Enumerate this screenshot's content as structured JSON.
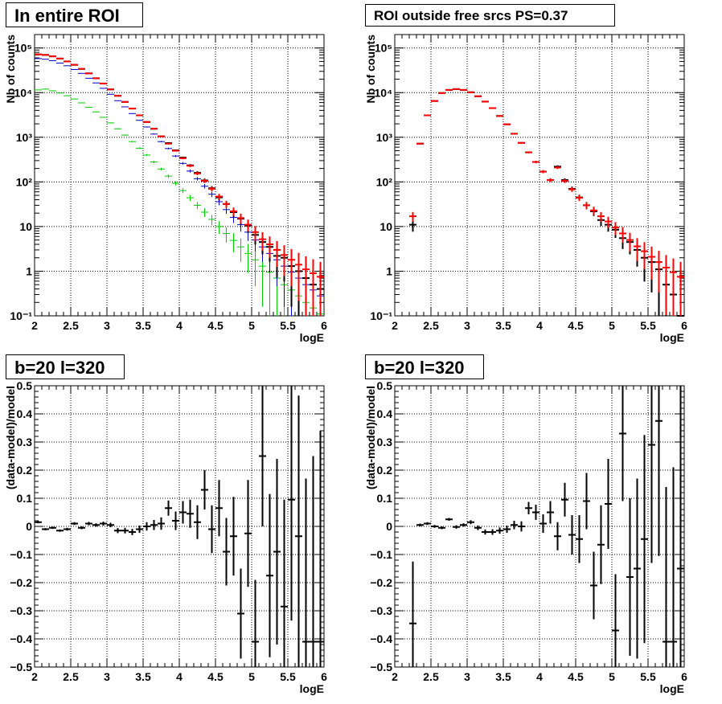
{
  "chart_data": [
    {
      "type": "scatter",
      "title": "In entire ROI",
      "xlabel": "logE",
      "ylabel": "Nb of counts",
      "xlim": [
        2,
        6
      ],
      "ylim": [
        0.1,
        200000
      ],
      "yscale": "log",
      "x_ticks": [
        "2",
        "2.5",
        "3",
        "3.5",
        "4",
        "4.5",
        "5",
        "5.5",
        "6"
      ],
      "y_ticks": [
        "10⁻¹",
        "1",
        "10",
        "10²",
        "10³",
        "10⁴",
        "10⁵"
      ],
      "grid": true,
      "bin_width": 0.1,
      "x": [
        2.05,
        2.15,
        2.25,
        2.35,
        2.45,
        2.55,
        2.65,
        2.75,
        2.85,
        2.95,
        3.05,
        3.15,
        3.25,
        3.35,
        3.45,
        3.55,
        3.65,
        3.75,
        3.85,
        3.95,
        4.05,
        4.15,
        4.25,
        4.35,
        4.45,
        4.55,
        4.65,
        4.75,
        4.85,
        4.95,
        5.05,
        5.15,
        5.25,
        5.35,
        5.45,
        5.55,
        5.65,
        5.75,
        5.85,
        5.95
      ],
      "series": [
        {
          "color": "#ff0000",
          "values": [
            72000,
            70000,
            65000,
            58000,
            50000,
            42000,
            34000,
            27000,
            21000,
            16000,
            11800,
            8500,
            6200,
            4400,
            3100,
            2200,
            1550,
            1050,
            720,
            500,
            340,
            230,
            155,
            105,
            70,
            47,
            32,
            22,
            15.5,
            11,
            7.5,
            5.2,
            4.0,
            3.0,
            2.3,
            1.8,
            1.4,
            1.1,
            0.9,
            0.75
          ]
        },
        {
          "color": "#000000",
          "values": [
            72000,
            70000,
            65000,
            58000,
            50000,
            42000,
            34000,
            27000,
            21000,
            16000,
            11800,
            8500,
            6200,
            4400,
            3100,
            2200,
            1550,
            1050,
            740,
            510,
            350,
            235,
            160,
            108,
            72,
            45,
            32,
            21,
            15,
            10.5,
            6.5,
            4.5,
            3.5,
            2.2,
            2.0,
            1.3,
            1.0,
            0.7,
            0.5,
            0.4
          ]
        },
        {
          "color": "#0000cc",
          "values": [
            58000,
            56000,
            52000,
            46000,
            40000,
            33000,
            27000,
            21000,
            16500,
            12500,
            9200,
            6600,
            4800,
            3400,
            2400,
            1700,
            1180,
            800,
            560,
            380,
            260,
            175,
            118,
            80,
            53,
            36,
            24,
            16,
            11,
            7.5,
            5,
            3.5,
            2.5,
            1.8,
            1.3,
            0.95,
            0.7,
            0.5,
            0.38,
            0.28
          ]
        },
        {
          "color": "#00cc00",
          "values": [
            11500,
            12000,
            11000,
            9800,
            8500,
            7200,
            5900,
            4700,
            3700,
            2800,
            2100,
            1550,
            1120,
            800,
            570,
            400,
            280,
            195,
            135,
            93,
            64,
            44,
            30,
            21,
            14.5,
            10,
            7,
            4.9,
            3.5,
            2.5,
            1.8,
            1.3,
            0.95,
            0.7,
            0.5,
            0.38,
            0.28,
            0.2,
            0.15,
            0.11
          ]
        }
      ]
    },
    {
      "type": "scatter",
      "title": "ROI outside free srcs PS=0.37",
      "xlabel": "logE",
      "ylabel": "Nb of counts",
      "xlim": [
        2,
        6
      ],
      "ylim": [
        0.1,
        200000
      ],
      "yscale": "log",
      "x_ticks": [
        "2",
        "2.5",
        "3",
        "3.5",
        "4",
        "4.5",
        "5",
        "5.5",
        "6"
      ],
      "y_ticks": [
        "10⁻¹",
        "1",
        "10",
        "10²",
        "10³",
        "10⁴",
        "10⁵"
      ],
      "grid": true,
      "bin_width": 0.1,
      "x": [
        2.25,
        2.35,
        2.45,
        2.55,
        2.65,
        2.75,
        2.85,
        2.95,
        3.05,
        3.15,
        3.25,
        3.35,
        3.45,
        3.55,
        3.65,
        3.75,
        3.85,
        3.95,
        4.05,
        4.15,
        4.25,
        4.35,
        4.45,
        4.55,
        4.65,
        4.75,
        4.85,
        4.95,
        5.05,
        5.15,
        5.25,
        5.35,
        5.45,
        5.55,
        5.65,
        5.75,
        5.85,
        5.95
      ],
      "series": [
        {
          "color": "#000000",
          "values": [
            11,
            720,
            3100,
            6500,
            9800,
            11500,
            12000,
            11500,
            10200,
            8300,
            6300,
            4500,
            3000,
            1950,
            1200,
            750,
            460,
            280,
            170,
            110,
            220,
            110,
            70,
            45,
            30,
            22,
            14,
            11,
            8.5,
            5.5,
            4.5,
            3,
            2,
            1.6,
            1.1,
            0.5,
            0.3,
            0.1
          ]
        },
        {
          "color": "#ff0000",
          "values": [
            17,
            720,
            3100,
            6500,
            9800,
            11500,
            12000,
            11500,
            10200,
            8300,
            6300,
            4500,
            3000,
            1950,
            1200,
            750,
            460,
            280,
            170,
            110,
            210,
            105,
            68,
            44,
            30,
            23,
            17,
            13,
            9.5,
            7,
            5,
            3.6,
            2.8,
            2.1,
            1.6,
            1.2,
            0.95,
            0.75
          ]
        }
      ]
    },
    {
      "type": "scatter",
      "title": "b=20 l=320",
      "xlabel": "logE",
      "ylabel": "(data-model)/model",
      "xlim": [
        2,
        6
      ],
      "ylim": [
        -0.5,
        0.5
      ],
      "x_ticks": [
        "2",
        "2.5",
        "3",
        "3.5",
        "4",
        "4.5",
        "5",
        "5.5",
        "6"
      ],
      "y_ticks": [
        "−0.5",
        "−0.4",
        "−0.3",
        "−0.2",
        "−0.1",
        "0",
        "0.1",
        "0.2",
        "0.3",
        "0.4",
        "0.5"
      ],
      "grid": true,
      "bin_width": 0.1,
      "x": [
        2.05,
        2.15,
        2.25,
        2.35,
        2.45,
        2.55,
        2.65,
        2.75,
        2.85,
        2.95,
        3.05,
        3.15,
        3.25,
        3.35,
        3.45,
        3.55,
        3.65,
        3.75,
        3.85,
        3.95,
        4.05,
        4.15,
        4.25,
        4.35,
        4.45,
        4.55,
        4.65,
        4.75,
        4.85,
        4.95,
        5.05,
        5.15,
        5.25,
        5.35,
        5.45,
        5.55,
        5.65,
        5.75,
        5.85,
        5.95
      ],
      "values": [
        0.015,
        -0.01,
        -0.005,
        -0.015,
        -0.01,
        0.01,
        -0.005,
        0.01,
        0.005,
        0.01,
        0.005,
        -0.015,
        -0.015,
        -0.02,
        -0.01,
        0.0,
        0.005,
        0.01,
        0.065,
        0.02,
        0.05,
        0.045,
        0.015,
        0.13,
        -0.01,
        0.065,
        -0.09,
        -0.035,
        -0.31,
        -0.025,
        -0.41,
        0.25,
        -0.175,
        -0.09,
        -0.285,
        0.095,
        -0.035,
        -0.41,
        -0.41,
        -0.41
      ],
      "errors": [
        0.004,
        0.004,
        0.004,
        0.004,
        0.005,
        0.005,
        0.005,
        0.006,
        0.006,
        0.007,
        0.008,
        0.009,
        0.01,
        0.011,
        0.013,
        0.015,
        0.018,
        0.022,
        0.027,
        0.033,
        0.04,
        0.05,
        0.06,
        0.07,
        0.085,
        0.1,
        0.12,
        0.14,
        0.16,
        0.19,
        0.22,
        0.25,
        0.29,
        0.33,
        0.38,
        0.43,
        0.5,
        0.58,
        0.66,
        0.75
      ]
    },
    {
      "type": "scatter",
      "title": "b=20 l=320",
      "xlabel": "logE",
      "ylabel": "(data-model)/model",
      "xlim": [
        2,
        6
      ],
      "ylim": [
        -0.5,
        0.5
      ],
      "x_ticks": [
        "2",
        "2.5",
        "3",
        "3.5",
        "4",
        "4.5",
        "5",
        "5.5",
        "6"
      ],
      "y_ticks": [
        "−0.5",
        "−0.4",
        "−0.3",
        "−0.2",
        "−0.1",
        "0",
        "0.1",
        "0.2",
        "0.3",
        "0.4",
        "0.5"
      ],
      "grid": true,
      "bin_width": 0.1,
      "x": [
        2.25,
        2.35,
        2.45,
        2.55,
        2.65,
        2.75,
        2.85,
        2.95,
        3.05,
        3.15,
        3.25,
        3.35,
        3.45,
        3.55,
        3.65,
        3.75,
        3.85,
        3.95,
        4.05,
        4.15,
        4.25,
        4.35,
        4.45,
        4.55,
        4.65,
        4.75,
        4.85,
        4.95,
        5.05,
        5.15,
        5.25,
        5.35,
        5.45,
        5.55,
        5.65,
        5.75,
        5.85,
        5.95
      ],
      "values": [
        -0.345,
        0.005,
        0.01,
        0.0,
        -0.005,
        0.025,
        -0.002,
        0.005,
        0.015,
        -0.005,
        -0.02,
        -0.02,
        -0.015,
        -0.01,
        0.005,
        0.0,
        0.065,
        0.05,
        0.01,
        0.05,
        -0.035,
        0.095,
        -0.03,
        -0.045,
        0.09,
        -0.21,
        -0.065,
        0.08,
        -0.37,
        0.33,
        -0.18,
        -0.15,
        -0.045,
        0.29,
        0.375,
        -0.41,
        -0.41,
        -0.15
      ],
      "errors": [
        0.22,
        0.005,
        0.005,
        0.005,
        0.005,
        0.005,
        0.006,
        0.006,
        0.007,
        0.008,
        0.009,
        0.01,
        0.011,
        0.013,
        0.015,
        0.018,
        0.022,
        0.027,
        0.033,
        0.04,
        0.05,
        0.06,
        0.07,
        0.085,
        0.1,
        0.12,
        0.14,
        0.16,
        0.2,
        0.24,
        0.28,
        0.32,
        0.37,
        0.42,
        0.48,
        0.55,
        0.62,
        0.7
      ]
    }
  ]
}
